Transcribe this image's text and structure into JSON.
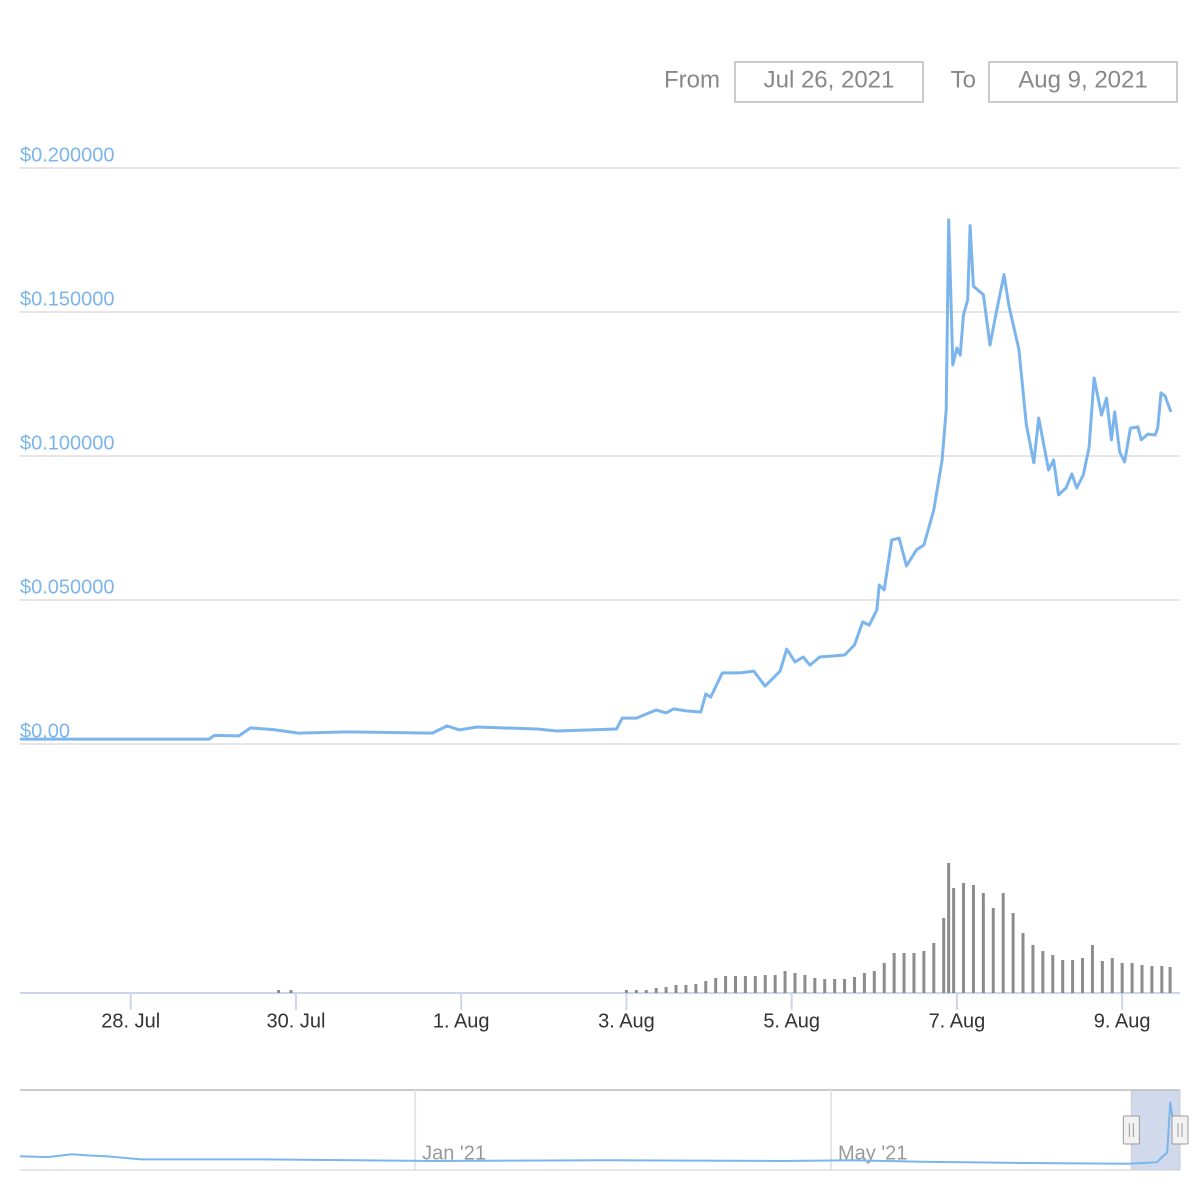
{
  "range_selector": {
    "from_label": "From",
    "from": "Jul 26, 2021",
    "to_label": "To",
    "to": "Aug 9, 2021"
  },
  "chart_data": {
    "type": "line",
    "xlim": [
      0.66,
      14.7
    ],
    "xticks": [
      {
        "value": 2,
        "label": "28. Jul"
      },
      {
        "value": 4,
        "label": "30. Jul"
      },
      {
        "value": 6,
        "label": "1. Aug"
      },
      {
        "value": 8,
        "label": "3. Aug"
      },
      {
        "value": 10,
        "label": "5. Aug"
      },
      {
        "value": 12,
        "label": "7. Aug"
      },
      {
        "value": 14,
        "label": "9. Aug"
      }
    ],
    "ylim": [
      0,
      0.2
    ],
    "yticks": [
      {
        "value": 0,
        "label": "$0.00"
      },
      {
        "value": 0.05,
        "label": "$0.050000"
      },
      {
        "value": 0.1,
        "label": "$0.100000"
      },
      {
        "value": 0.15,
        "label": "$0.150000"
      },
      {
        "value": 0.2,
        "label": "$0.200000"
      }
    ],
    "y2lim": [
      0,
      140
    ],
    "grid": true,
    "series": [
      {
        "type": "line",
        "color": "#7cb5ec",
        "x": [
          0.66,
          2.95,
          3.01,
          3.31,
          3.45,
          3.73,
          4.03,
          4.63,
          5.65,
          5.83,
          5.98,
          6.19,
          6.92,
          7.16,
          7.88,
          7.95,
          8.12,
          8.36,
          8.48,
          8.57,
          8.72,
          8.9,
          8.96,
          9.02,
          9.16,
          9.38,
          9.54,
          9.68,
          9.86,
          9.94,
          10.04,
          10.14,
          10.22,
          10.34,
          10.64,
          10.76,
          10.86,
          10.94,
          11.03,
          11.06,
          11.12,
          11.21,
          11.3,
          11.39,
          11.51,
          11.6,
          11.72,
          11.82,
          11.87,
          11.9,
          11.95,
          12.0,
          12.04,
          12.08,
          12.13,
          12.16,
          12.2,
          12.32,
          12.4,
          12.47,
          12.57,
          12.63,
          12.75,
          12.84,
          12.93,
          12.99,
          13.11,
          13.17,
          13.23,
          13.32,
          13.39,
          13.45,
          13.53,
          13.6,
          13.66,
          13.75,
          13.81,
          13.87,
          13.91,
          13.97,
          14.03,
          14.1,
          14.19,
          14.23,
          14.31,
          14.4,
          14.43,
          14.47,
          14.52,
          14.59
        ],
        "values": [
          0.0017,
          0.0017,
          0.003,
          0.0028,
          0.0056,
          0.005,
          0.0038,
          0.0042,
          0.0038,
          0.0063,
          0.0049,
          0.0059,
          0.0052,
          0.0045,
          0.0052,
          0.009,
          0.009,
          0.0118,
          0.0108,
          0.0122,
          0.0115,
          0.0111,
          0.0174,
          0.0163,
          0.0247,
          0.0247,
          0.0253,
          0.0201,
          0.0253,
          0.033,
          0.0285,
          0.0302,
          0.0274,
          0.0302,
          0.0309,
          0.0344,
          0.0424,
          0.0413,
          0.0465,
          0.0552,
          0.0535,
          0.0708,
          0.0715,
          0.0618,
          0.0674,
          0.0691,
          0.0813,
          0.0986,
          0.116,
          0.182,
          0.1316,
          0.1375,
          0.135,
          0.149,
          0.1542,
          0.18,
          0.159,
          0.156,
          0.1385,
          0.149,
          0.163,
          0.152,
          0.137,
          0.111,
          0.0976,
          0.1132,
          0.0951,
          0.0986,
          0.0865,
          0.0889,
          0.0938,
          0.0889,
          0.0934,
          0.1031,
          0.1271,
          0.1142,
          0.1201,
          0.1056,
          0.1153,
          0.1014,
          0.0979,
          0.1097,
          0.1101,
          0.1056,
          0.1076,
          0.1073,
          0.1097,
          0.1219,
          0.1208,
          0.1153
        ]
      },
      {
        "type": "bar",
        "axis": "y2",
        "color": "#8c8c8c",
        "x": [
          3.79,
          3.94,
          8.0,
          8.12,
          8.24,
          8.36,
          8.48,
          8.6,
          8.72,
          8.84,
          8.96,
          9.08,
          9.2,
          9.32,
          9.44,
          9.56,
          9.68,
          9.8,
          9.92,
          10.04,
          10.16,
          10.28,
          10.4,
          10.52,
          10.64,
          10.76,
          10.88,
          11.0,
          11.12,
          11.24,
          11.36,
          11.48,
          11.6,
          11.72,
          11.84,
          11.9,
          11.96,
          12.08,
          12.2,
          12.32,
          12.44,
          12.56,
          12.68,
          12.8,
          12.92,
          13.04,
          13.16,
          13.28,
          13.4,
          13.52,
          13.64,
          13.76,
          13.88,
          14.0,
          14.12,
          14.24,
          14.36,
          14.48,
          14.58
        ],
        "values": [
          3,
          3,
          3,
          3,
          3,
          5,
          6,
          8,
          8,
          9,
          12,
          15,
          17,
          17,
          17,
          17,
          18,
          18,
          22,
          20,
          18,
          15,
          14,
          14,
          14,
          16,
          20,
          22,
          30,
          40,
          40,
          40,
          42,
          50,
          75,
          130,
          105,
          110,
          108,
          100,
          85,
          100,
          80,
          60,
          48,
          42,
          38,
          33,
          33,
          35,
          48,
          32,
          35,
          30,
          30,
          28,
          27,
          27,
          26
        ]
      }
    ],
    "navigator": {
      "xlim": [
        -320,
        14.7
      ],
      "ylim": [
        0,
        0.2
      ],
      "xticks": [
        {
          "value": -206,
          "label": "Jan '21"
        },
        {
          "value": -86,
          "label": "May '21"
        }
      ],
      "selection": [
        0.66,
        14.7
      ],
      "color": "#7cb5ec",
      "x": [
        -320,
        -312,
        -305,
        -300,
        -295,
        -290,
        -285,
        -250,
        -200,
        -150,
        -100,
        -80,
        -60,
        -20,
        0,
        8,
        11,
        11.9,
        12.5,
        13,
        14,
        14.6
      ],
      "values": [
        0.03,
        0.028,
        0.035,
        0.032,
        0.03,
        0.026,
        0.022,
        0.022,
        0.018,
        0.02,
        0.018,
        0.02,
        0.016,
        0.012,
        0.011,
        0.015,
        0.04,
        0.17,
        0.13,
        0.09,
        0.1,
        0.115
      ]
    }
  }
}
